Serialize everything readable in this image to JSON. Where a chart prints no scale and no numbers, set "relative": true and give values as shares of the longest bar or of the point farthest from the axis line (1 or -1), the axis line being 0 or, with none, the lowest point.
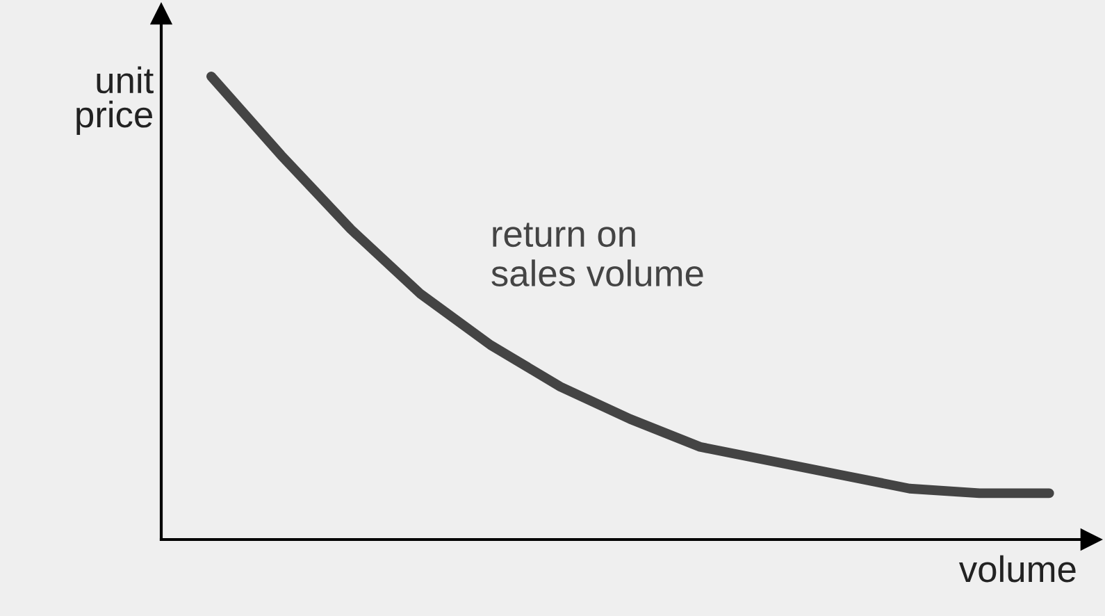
{
  "chart_data": {
    "type": "line",
    "relative": true,
    "xlabel": "volume",
    "ylabel": "unit\nprice",
    "categories": [
      null,
      null,
      null,
      null,
      null,
      null,
      null,
      null,
      null,
      null,
      null,
      null,
      null
    ],
    "series": [
      {
        "color": "#444444",
        "values": [
          1,
          0.83,
          0.67,
          0.53,
          0.42,
          0.33,
          0.26,
          0.2,
          0.17,
          0.14,
          0.11,
          0.1,
          0.1
        ]
      }
    ],
    "annotations": [
      "return on\nsales volume"
    ],
    "grid": false,
    "legend": false,
    "marker": "none",
    "line_style": "solid"
  }
}
